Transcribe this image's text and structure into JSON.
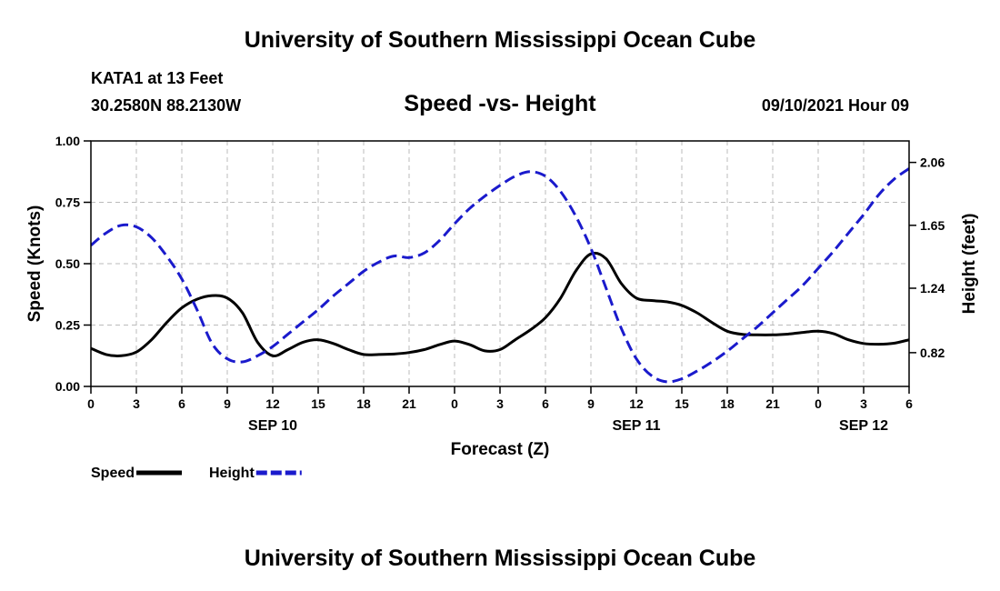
{
  "header": {
    "title": "University of Southern Mississippi Ocean Cube",
    "station": "KATA1 at 13 Feet",
    "coords": "30.2580N  88.2130W",
    "subtitle": "Speed -vs- Height",
    "datetime": "09/10/2021 Hour 09"
  },
  "footer": {
    "title": "University of Southern Mississippi Ocean Cube"
  },
  "chart_data": {
    "type": "line",
    "title": "Speed -vs- Height",
    "xlabel": "Forecast (Z)",
    "ylabel": "Speed (Knots)",
    "y2label": "Height (feet)",
    "xlim": [
      0,
      54
    ],
    "ylim": [
      0,
      1.0
    ],
    "y2lim": [
      0.6,
      2.2
    ],
    "x_ticks": [
      0,
      3,
      6,
      9,
      12,
      15,
      18,
      21,
      24,
      27,
      30,
      33,
      36,
      39,
      42,
      45,
      48,
      51,
      54
    ],
    "x_tick_labels": [
      "0",
      "3",
      "6",
      "9",
      "12",
      "15",
      "18",
      "21",
      "0",
      "3",
      "6",
      "9",
      "12",
      "15",
      "18",
      "21",
      "0",
      "3",
      "6"
    ],
    "y_ticks": [
      0,
      0.25,
      0.5,
      0.75,
      1.0
    ],
    "y_tick_labels": [
      "0.00",
      "0.25",
      "0.50",
      "0.75",
      "1.00"
    ],
    "y2_ticks": [
      0.82,
      1.24,
      1.65,
      2.06
    ],
    "y2_tick_labels": [
      "0.82",
      "1.24",
      "1.65",
      "2.06"
    ],
    "day_labels": [
      {
        "x": 12,
        "label": "SEP 10"
      },
      {
        "x": 36,
        "label": "SEP 11"
      },
      {
        "x": 51,
        "label": "SEP 12"
      }
    ],
    "grid": true,
    "legend": {
      "placement": "bottom-left"
    },
    "series": [
      {
        "name": "Speed",
        "axis": "left",
        "color": "#000000",
        "dash": "solid",
        "x": [
          0,
          1,
          2,
          3,
          4,
          5,
          6,
          7,
          8,
          9,
          10,
          11,
          12,
          13,
          14,
          15,
          16,
          17,
          18,
          19,
          20,
          21,
          22,
          23,
          24,
          25,
          26,
          27,
          28,
          29,
          30,
          31,
          32,
          33,
          34,
          35,
          36,
          37,
          38,
          39,
          40,
          41,
          42,
          43,
          44,
          45,
          46,
          47,
          48,
          49,
          50,
          51,
          52,
          53,
          54
        ],
        "values": [
          0.155,
          0.13,
          0.125,
          0.14,
          0.19,
          0.26,
          0.32,
          0.355,
          0.37,
          0.36,
          0.3,
          0.18,
          0.125,
          0.15,
          0.18,
          0.19,
          0.175,
          0.15,
          0.13,
          0.13,
          0.132,
          0.138,
          0.15,
          0.17,
          0.185,
          0.17,
          0.145,
          0.15,
          0.19,
          0.23,
          0.28,
          0.36,
          0.47,
          0.54,
          0.52,
          0.42,
          0.36,
          0.35,
          0.345,
          0.33,
          0.3,
          0.26,
          0.225,
          0.212,
          0.21,
          0.21,
          0.213,
          0.22,
          0.225,
          0.215,
          0.19,
          0.175,
          0.172,
          0.176,
          0.19
        ]
      },
      {
        "name": "Height",
        "axis": "right",
        "color": "#1a1acc",
        "dash": "dashed",
        "x": [
          0,
          1,
          2,
          3,
          4,
          5,
          6,
          7,
          8,
          9,
          10,
          11,
          12,
          13,
          14,
          15,
          16,
          17,
          18,
          19,
          20,
          21,
          22,
          23,
          24,
          25,
          26,
          27,
          28,
          29,
          30,
          31,
          32,
          33,
          34,
          35,
          36,
          37,
          38,
          39,
          40,
          41,
          42,
          43,
          44,
          45,
          46,
          47,
          48,
          49,
          50,
          51,
          52,
          53,
          54
        ],
        "values": [
          1.52,
          1.6,
          1.65,
          1.64,
          1.57,
          1.45,
          1.3,
          1.1,
          0.88,
          0.78,
          0.76,
          0.8,
          0.86,
          0.94,
          1.02,
          1.1,
          1.19,
          1.27,
          1.35,
          1.41,
          1.45,
          1.44,
          1.47,
          1.55,
          1.66,
          1.76,
          1.84,
          1.91,
          1.97,
          2.0,
          1.97,
          1.87,
          1.71,
          1.5,
          1.24,
          0.98,
          0.78,
          0.67,
          0.63,
          0.65,
          0.7,
          0.76,
          0.83,
          0.91,
          0.99,
          1.08,
          1.17,
          1.26,
          1.37,
          1.48,
          1.6,
          1.72,
          1.85,
          1.95,
          2.02
        ]
      }
    ]
  }
}
